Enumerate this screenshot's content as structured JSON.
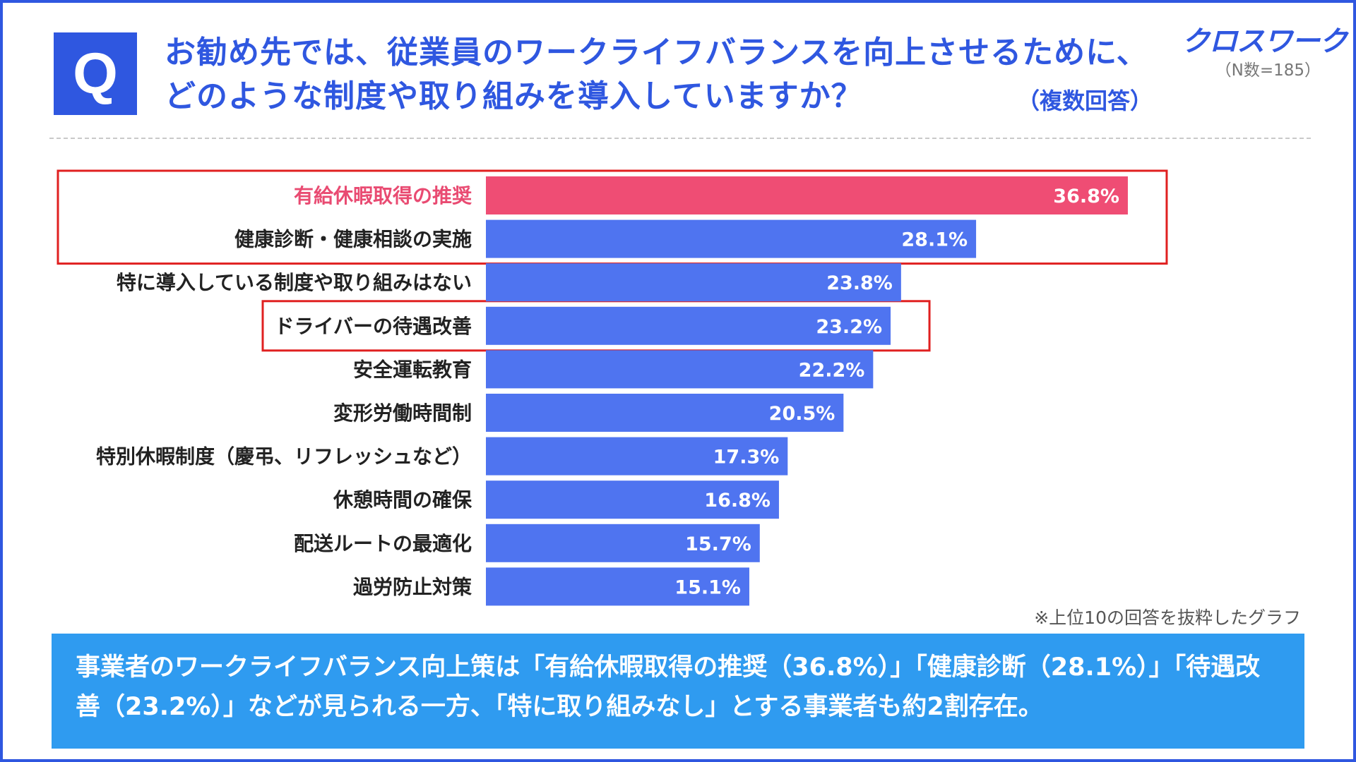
{
  "header": {
    "q_label": "Q",
    "question": "お勧め先では、従業員のワークライフバランスを向上させるために、どのような制度や取り組みを導入していますか？",
    "multi_answer": "（複数回答）",
    "brand": "クロスワーク",
    "sample_size": "（N数=185）"
  },
  "colors": {
    "brand_blue": "#2f57e0",
    "bar_blue": "#4f74f0",
    "bar_highlight": "#ef4d74",
    "label_highlight": "#e94b72",
    "highlight_box": "#e02020",
    "summary_bg": "#2f9bf0"
  },
  "chart_data": {
    "type": "bar",
    "orientation": "horizontal",
    "title": "",
    "xlabel": "",
    "ylabel": "",
    "unit": "%",
    "xlim": [
      0,
      40
    ],
    "categories": [
      "有給休暇取得の推奨",
      "健康診断・健康相談の実施",
      "特に導入している制度や取り組みはない",
      "ドライバーの待遇改善",
      "安全運転教育",
      "変形労働時間制",
      "特別休暇制度（慶弔、リフレッシュなど）",
      "休憩時間の確保",
      "配送ルートの最適化",
      "過労防止対策"
    ],
    "values": [
      36.8,
      28.1,
      23.8,
      23.2,
      22.2,
      20.5,
      17.3,
      16.8,
      15.7,
      15.1
    ],
    "value_labels": [
      "36.8%",
      "28.1%",
      "23.8%",
      "23.2%",
      "22.2%",
      "20.5%",
      "17.3%",
      "16.8%",
      "15.7%",
      "15.1%"
    ],
    "highlighted_index": 0,
    "boxed_groups": [
      [
        0,
        1
      ],
      [
        3
      ]
    ]
  },
  "footnote": "※上位10の回答を抜粋したグラフ",
  "summary": "事業者のワークライフバランス向上策は「有給休暇取得の推奨（36.8%）」「健康診断（28.1%）」「待遇改善（23.2%）」などが見られる一方、「特に取り組みなし」とする事業者も約2割存在。"
}
